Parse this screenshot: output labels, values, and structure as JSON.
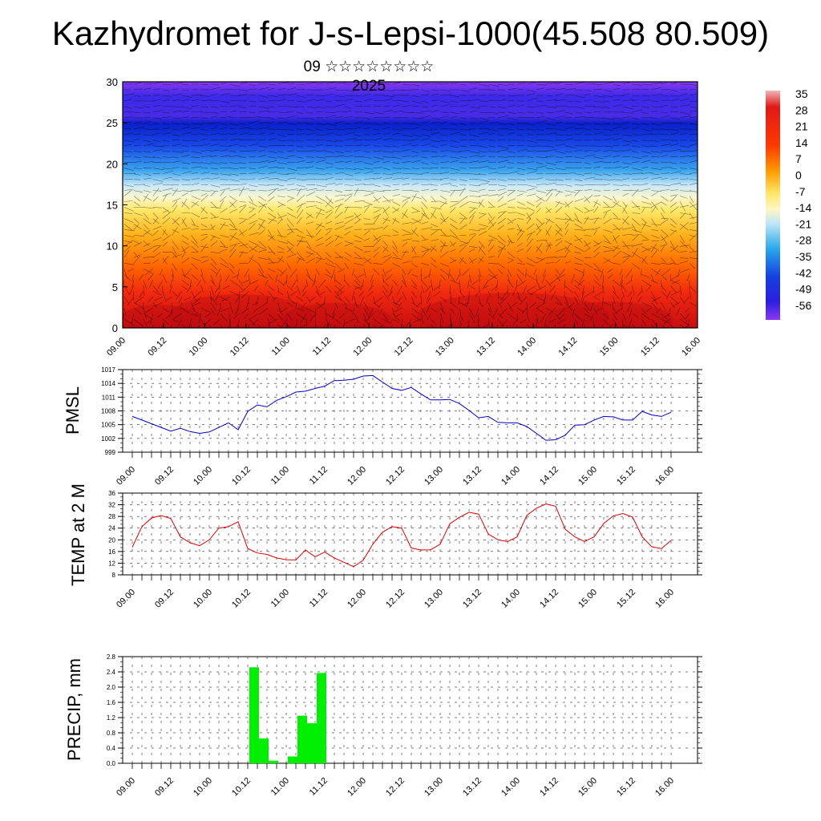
{
  "header": {
    "title": "Kazhydromet for J-s-Lepsi-1000(45.508 80.509)",
    "subtitle": "09 ☆☆☆☆☆☆☆☆ 2025"
  },
  "time_ticks": [
    "09.00",
    "09.12",
    "10.00",
    "10.12",
    "11.00",
    "11.12",
    "12.00",
    "12.12",
    "13.00",
    "13.12",
    "14.00",
    "14.12",
    "15.00",
    "15.12",
    "16.00"
  ],
  "chart_data": [
    {
      "type": "heatmap",
      "name": "temperature-wind-cross-section",
      "x_ticks": [
        "09.00",
        "09.12",
        "10.00",
        "10.12",
        "11.00",
        "11.12",
        "12.00",
        "12.12",
        "13.00",
        "13.12",
        "14.00",
        "14.12",
        "15.00",
        "15.12",
        "16.00"
      ],
      "y_ticks": [
        0,
        5,
        10,
        15,
        20,
        25,
        30
      ],
      "ylim": [
        0,
        30
      ],
      "colorbar": {
        "labels": [
          "35",
          "28",
          "21",
          "14",
          "7",
          "0",
          "-7",
          "-14",
          "-21",
          "-28",
          "-35",
          "-42",
          "-49",
          "-56"
        ],
        "range": [
          -60,
          37
        ],
        "stops": [
          {
            "value": 37,
            "color": "#f2b6b6"
          },
          {
            "value": 30,
            "color": "#e01818"
          },
          {
            "value": 14,
            "color": "#ff3a00"
          },
          {
            "value": 3,
            "color": "#ff9a00"
          },
          {
            "value": -7,
            "color": "#ffe76a"
          },
          {
            "value": -14,
            "color": "#fdf6c8"
          },
          {
            "value": -20,
            "color": "#bfe6f7"
          },
          {
            "value": -30,
            "color": "#2aa8ea"
          },
          {
            "value": -42,
            "color": "#1540e0"
          },
          {
            "value": -52,
            "color": "#2a1fe0"
          },
          {
            "value": -60,
            "color": "#8a38f0"
          }
        ]
      }
    },
    {
      "type": "line",
      "name": "pmsl",
      "ylabel": "PMSL",
      "ylim": [
        999,
        1017
      ],
      "y_ticks": [
        "999",
        "1002",
        "1005",
        "1008",
        "1011",
        "1014",
        "1017"
      ],
      "line_color": "#0000cc",
      "step_hours": 3,
      "values": [
        1006.8,
        1006,
        1005.2,
        1004.4,
        1003.6,
        1004.2,
        1003.5,
        1003.1,
        1003.4,
        1004.4,
        1005.4,
        1003.9,
        1007.9,
        1009.3,
        1008.9,
        1010.3,
        1011.1,
        1012.1,
        1012.3,
        1012.9,
        1013.4,
        1014.6,
        1014.7,
        1014.9,
        1015.6,
        1015.7,
        1014.3,
        1012.9,
        1012.5,
        1013.1,
        1011.7,
        1010.4,
        1010.4,
        1010.5,
        1009.6,
        1008.1,
        1006.5,
        1006.8,
        1005.5,
        1005.4,
        1005.4,
        1004.6,
        1003.1,
        1001.6,
        1001.7,
        1002.7,
        1004.9,
        1005,
        1006,
        1006.8,
        1006.7,
        1006,
        1006,
        1007.9,
        1007.1,
        1006.8,
        1007.7
      ]
    },
    {
      "type": "line",
      "name": "temp-2m",
      "ylabel": "TEMP at 2 M",
      "ylim": [
        8,
        36
      ],
      "y_ticks": [
        "8",
        "12",
        "16",
        "20",
        "24",
        "28",
        "32",
        "36"
      ],
      "line_color": "#dd0000",
      "step_hours": 3,
      "values": [
        17.5,
        24.5,
        27.5,
        28.3,
        27.3,
        21,
        19,
        18,
        20,
        24,
        24.5,
        26.2,
        17,
        15.5,
        15,
        13.8,
        13.2,
        13.1,
        16.5,
        14.2,
        15.8,
        13.8,
        12.3,
        10.8,
        13,
        18.5,
        22.6,
        24.5,
        24,
        17.2,
        16.5,
        16.6,
        18.5,
        25.5,
        27.7,
        29.4,
        28.8,
        22,
        20,
        19.4,
        21,
        28.3,
        30.8,
        32.3,
        31.5,
        23.6,
        21,
        19.4,
        21,
        25.6,
        28.2,
        29,
        27.8,
        21,
        17.6,
        17,
        19.8
      ]
    },
    {
      "type": "bar",
      "name": "precip",
      "ylabel": "PRECIP, mm",
      "ylim": [
        0,
        2.8
      ],
      "y_ticks": [
        "0.0",
        "0.4",
        "0.8",
        "1.2",
        "1.6",
        "2.0",
        "2.4",
        "2.8"
      ],
      "bar_color": "#00ee00",
      "step_hours": 3,
      "values": [
        0,
        0,
        0,
        0,
        0,
        0,
        0,
        0,
        0,
        0,
        0,
        0,
        2.52,
        0.65,
        0.07,
        0,
        0.18,
        1.25,
        1.05,
        2.37,
        0,
        0,
        0,
        0,
        0,
        0,
        0,
        0,
        0,
        0,
        0,
        0,
        0,
        0,
        0,
        0,
        0,
        0,
        0,
        0,
        0,
        0,
        0,
        0,
        0,
        0,
        0,
        0,
        0,
        0,
        0,
        0,
        0,
        0,
        0,
        0
      ]
    }
  ]
}
